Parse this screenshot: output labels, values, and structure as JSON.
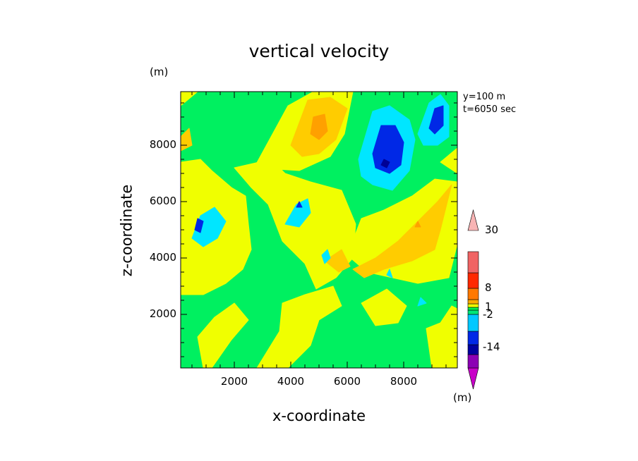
{
  "chart_data": {
    "type": "heatmap",
    "title": "vertical velocity",
    "xlabel": "x-coordinate",
    "ylabel": "z-coordinate",
    "axis_unit": "(m)",
    "annotations": [
      "y=100 m",
      "t=6050 sec"
    ],
    "xlim": [
      100,
      9900
    ],
    "ylim": [
      100,
      9900
    ],
    "xticks": [
      2000,
      4000,
      6000,
      8000
    ],
    "yticks": [
      2000,
      4000,
      6000,
      8000
    ],
    "colorbar": {
      "unit": "(m)",
      "tick_labels": [
        "30",
        "8",
        "1",
        "-2",
        "-14"
      ],
      "colors": [
        "#c800c8",
        "#8c00b4",
        "#0000a0",
        "#0028e6",
        "#00c8ff",
        "#00e678",
        "#00f050",
        "#f0ff00",
        "#ffaa00",
        "#ff7800",
        "#ff2800",
        "#f06464",
        "#f8b4b4"
      ]
    },
    "levels": [
      {
        "name": "green",
        "color": "#00f060"
      },
      {
        "name": "yellow",
        "color": "#f0ff00"
      },
      {
        "name": "light-orange",
        "color": "#ffcc00"
      },
      {
        "name": "orange",
        "color": "#ffa000"
      },
      {
        "name": "cyan",
        "color": "#00e6ff"
      },
      {
        "name": "blue",
        "color": "#0028e6"
      },
      {
        "name": "dark-blue",
        "color": "#000096"
      }
    ],
    "regions": [
      {
        "level": "yellow",
        "points": [
          [
            100,
            2700
          ],
          [
            900,
            2700
          ],
          [
            1700,
            3100
          ],
          [
            2300,
            3600
          ],
          [
            2600,
            4300
          ],
          [
            2500,
            5200
          ],
          [
            2400,
            6200
          ],
          [
            1900,
            6500
          ],
          [
            1200,
            7100
          ],
          [
            800,
            7500
          ],
          [
            100,
            7400
          ]
        ]
      },
      {
        "level": "yellow",
        "points": [
          [
            2000,
            7200
          ],
          [
            3300,
            7500
          ],
          [
            3800,
            7000
          ],
          [
            4700,
            6700
          ],
          [
            5800,
            6400
          ],
          [
            6300,
            5200
          ],
          [
            6200,
            4000
          ],
          [
            5600,
            3300
          ],
          [
            4900,
            2900
          ],
          [
            4500,
            3800
          ],
          [
            3700,
            4600
          ],
          [
            3200,
            5900
          ],
          [
            2600,
            6500
          ]
        ]
      },
      {
        "level": "yellow",
        "points": [
          [
            2800,
            100
          ],
          [
            3600,
            1400
          ],
          [
            3700,
            2400
          ],
          [
            4500,
            2700
          ],
          [
            5500,
            3000
          ],
          [
            5800,
            2300
          ],
          [
            5000,
            1800
          ],
          [
            4700,
            900
          ],
          [
            3900,
            100
          ]
        ]
      },
      {
        "level": "yellow",
        "points": [
          [
            1200,
            100
          ],
          [
            1900,
            1100
          ],
          [
            2500,
            1800
          ],
          [
            2000,
            2400
          ],
          [
            1300,
            1900
          ],
          [
            700,
            1200
          ],
          [
            900,
            100
          ]
        ]
      },
      {
        "level": "yellow",
        "points": [
          [
            2700,
            7200
          ],
          [
            3300,
            8300
          ],
          [
            3900,
            9400
          ],
          [
            4800,
            9900
          ],
          [
            6200,
            9900
          ],
          [
            5900,
            8400
          ],
          [
            5400,
            7600
          ],
          [
            4300,
            7100
          ]
        ]
      },
      {
        "level": "yellow",
        "points": [
          [
            6000,
            4100
          ],
          [
            6700,
            3500
          ],
          [
            7600,
            3300
          ],
          [
            8500,
            3100
          ],
          [
            9600,
            3300
          ],
          [
            9900,
            4500
          ],
          [
            9900,
            6700
          ],
          [
            9100,
            6800
          ],
          [
            8300,
            6200
          ],
          [
            7300,
            5700
          ],
          [
            6500,
            5400
          ]
        ]
      },
      {
        "level": "yellow",
        "points": [
          [
            6500,
            2400
          ],
          [
            7400,
            2900
          ],
          [
            8100,
            2300
          ],
          [
            7800,
            1700
          ],
          [
            7000,
            1600
          ]
        ]
      },
      {
        "level": "yellow",
        "points": [
          [
            8800,
            1500
          ],
          [
            9300,
            1700
          ],
          [
            9700,
            2300
          ],
          [
            9900,
            2200
          ],
          [
            9900,
            100
          ],
          [
            9000,
            100
          ]
        ]
      },
      {
        "level": "yellow",
        "points": [
          [
            9300,
            7400
          ],
          [
            9900,
            7900
          ],
          [
            9900,
            7000
          ]
        ]
      },
      {
        "level": "yellow",
        "points": [
          [
            100,
            9400
          ],
          [
            700,
            9900
          ],
          [
            100,
            9900
          ]
        ]
      },
      {
        "level": "light-orange",
        "points": [
          [
            6200,
            3600
          ],
          [
            7000,
            4000
          ],
          [
            7800,
            4600
          ],
          [
            8500,
            5300
          ],
          [
            9200,
            6000
          ],
          [
            9700,
            6600
          ],
          [
            9600,
            6200
          ],
          [
            9300,
            5000
          ],
          [
            9100,
            4300
          ],
          [
            8300,
            3900
          ],
          [
            7300,
            3600
          ],
          [
            6600,
            3300
          ]
        ]
      },
      {
        "level": "light-orange",
        "points": [
          [
            4000,
            8000
          ],
          [
            4300,
            8800
          ],
          [
            4600,
            9600
          ],
          [
            5400,
            9700
          ],
          [
            6000,
            9300
          ],
          [
            5600,
            8200
          ],
          [
            5000,
            7700
          ],
          [
            4400,
            7600
          ]
        ]
      },
      {
        "level": "light-orange",
        "points": [
          [
            5200,
            3900
          ],
          [
            5800,
            4300
          ],
          [
            6100,
            3700
          ],
          [
            5700,
            3500
          ]
        ]
      },
      {
        "level": "light-orange",
        "points": [
          [
            100,
            8300
          ],
          [
            400,
            8600
          ],
          [
            500,
            8000
          ],
          [
            100,
            7800
          ]
        ]
      },
      {
        "level": "orange",
        "points": [
          [
            4700,
            8400
          ],
          [
            4800,
            9000
          ],
          [
            5200,
            9100
          ],
          [
            5300,
            8500
          ],
          [
            5000,
            8200
          ]
        ]
      },
      {
        "level": "orange",
        "points": [
          [
            8400,
            5100
          ],
          [
            8500,
            5300
          ],
          [
            8600,
            5100
          ]
        ]
      },
      {
        "level": "cyan",
        "points": [
          [
            6400,
            7500
          ],
          [
            6900,
            9200
          ],
          [
            7500,
            9400
          ],
          [
            8200,
            8900
          ],
          [
            8400,
            8200
          ],
          [
            8200,
            7100
          ],
          [
            7600,
            6400
          ],
          [
            6900,
            6600
          ],
          [
            6500,
            6900
          ]
        ]
      },
      {
        "level": "cyan",
        "points": [
          [
            8500,
            8400
          ],
          [
            8900,
            9500
          ],
          [
            9300,
            9800
          ],
          [
            9600,
            9400
          ],
          [
            9600,
            8300
          ],
          [
            9200,
            8000
          ],
          [
            8700,
            8000
          ]
        ]
      },
      {
        "level": "cyan",
        "points": [
          [
            500,
            4700
          ],
          [
            800,
            5500
          ],
          [
            1300,
            5800
          ],
          [
            1700,
            5300
          ],
          [
            1400,
            4700
          ],
          [
            900,
            4400
          ]
        ]
      },
      {
        "level": "cyan",
        "points": [
          [
            3800,
            5200
          ],
          [
            4200,
            5900
          ],
          [
            4600,
            6100
          ],
          [
            4700,
            5600
          ],
          [
            4300,
            5100
          ]
        ]
      },
      {
        "level": "cyan",
        "points": [
          [
            5100,
            4100
          ],
          [
            5300,
            4300
          ],
          [
            5400,
            4000
          ],
          [
            5200,
            3800
          ]
        ]
      },
      {
        "level": "cyan",
        "points": [
          [
            7400,
            3400
          ],
          [
            7500,
            3600
          ],
          [
            7600,
            3300
          ]
        ]
      },
      {
        "level": "cyan",
        "points": [
          [
            8500,
            2300
          ],
          [
            8600,
            2600
          ],
          [
            8800,
            2400
          ]
        ]
      },
      {
        "level": "blue",
        "points": [
          [
            6900,
            7700
          ],
          [
            7200,
            8700
          ],
          [
            7700,
            8700
          ],
          [
            8000,
            8100
          ],
          [
            7900,
            7300
          ],
          [
            7500,
            7000
          ],
          [
            7000,
            7200
          ]
        ]
      },
      {
        "level": "blue",
        "points": [
          [
            8900,
            8600
          ],
          [
            9100,
            9300
          ],
          [
            9400,
            9400
          ],
          [
            9400,
            8700
          ],
          [
            9100,
            8400
          ]
        ]
      },
      {
        "level": "blue",
        "points": [
          [
            600,
            5000
          ],
          [
            700,
            5400
          ],
          [
            900,
            5300
          ],
          [
            800,
            4900
          ]
        ]
      },
      {
        "level": "blue",
        "points": [
          [
            4200,
            5800
          ],
          [
            4300,
            6000
          ],
          [
            4400,
            5800
          ]
        ]
      },
      {
        "level": "dark-blue",
        "points": [
          [
            7200,
            7300
          ],
          [
            7300,
            7500
          ],
          [
            7500,
            7400
          ],
          [
            7400,
            7200
          ]
        ]
      }
    ]
  }
}
